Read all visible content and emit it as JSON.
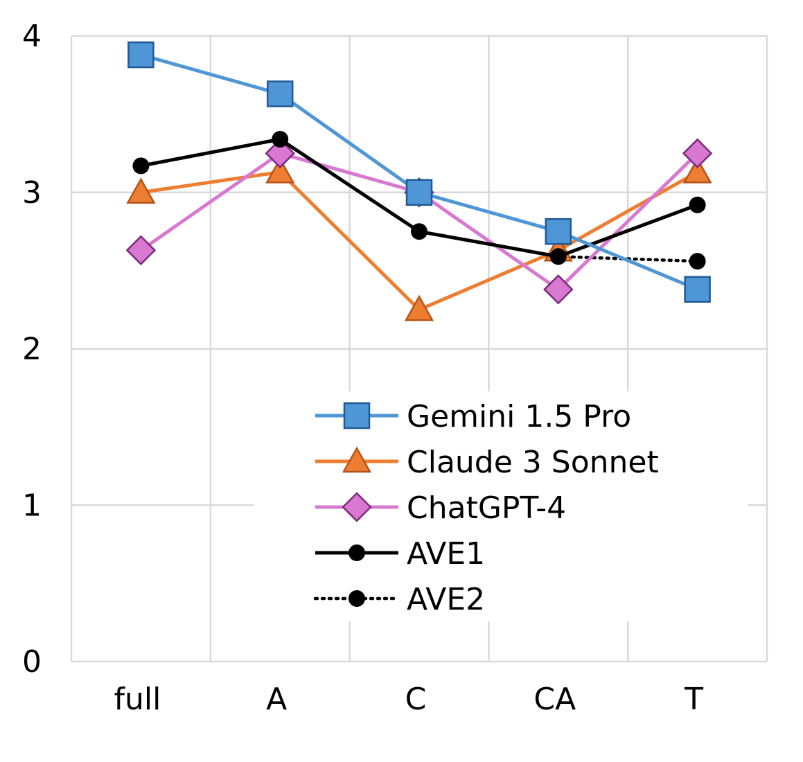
{
  "chart_data": {
    "type": "line",
    "title": "",
    "xlabel": "",
    "ylabel": "",
    "categories": [
      "full",
      "A",
      "C",
      "CA",
      "T"
    ],
    "ylim": [
      0,
      4
    ],
    "yticks": [
      0,
      1,
      2,
      3,
      4
    ],
    "grid": true,
    "legend_position": "center-right",
    "series": [
      {
        "name": "Gemini 1.5 Pro",
        "values": [
          3.88,
          3.63,
          3.0,
          2.75,
          2.38
        ],
        "color": "#4e96d6",
        "marker": "square",
        "line_style": "solid"
      },
      {
        "name": "Claude 3 Sonnet",
        "values": [
          3.0,
          3.13,
          2.25,
          2.63,
          3.13
        ],
        "color": "#ed7d31",
        "marker": "triangle",
        "line_style": "solid"
      },
      {
        "name": "ChatGPT-4",
        "values": [
          2.63,
          3.25,
          3.0,
          2.38,
          3.25
        ],
        "color": "#d878d0",
        "marker": "diamond",
        "line_style": "solid"
      },
      {
        "name": "AVE1",
        "values": [
          3.17,
          3.34,
          2.75,
          2.59,
          2.92
        ],
        "color": "#000000",
        "marker": "circle",
        "line_style": "solid"
      },
      {
        "name": "AVE2",
        "values": [
          null,
          null,
          null,
          2.59,
          2.56
        ],
        "color": "#000000",
        "marker": "circle",
        "line_style": "dotted"
      }
    ]
  }
}
